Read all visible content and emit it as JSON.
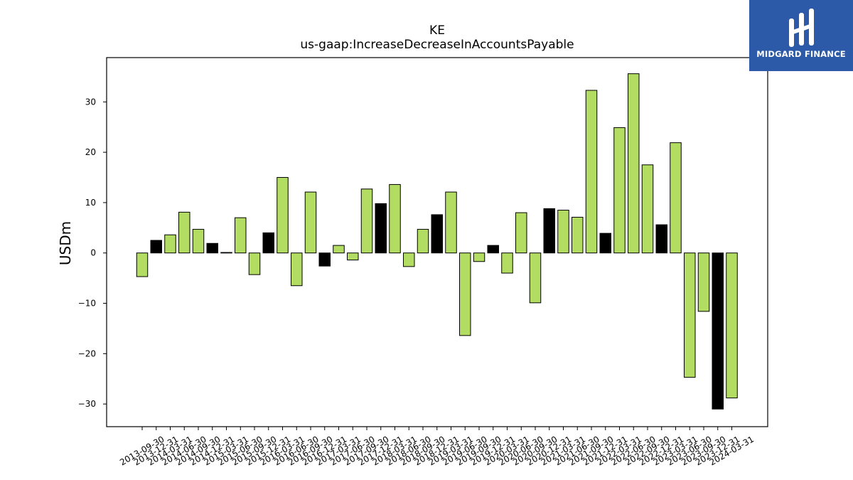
{
  "chart_data": {
    "type": "bar",
    "title": "KE",
    "subtitle": "us-gaap:IncreaseDecreaseInAccountsPayable",
    "ylabel": "USDm",
    "xlabel": "",
    "ylim": [
      -34.5,
      38.8
    ],
    "yticks": [
      -30,
      -20,
      -10,
      0,
      10,
      20,
      30
    ],
    "ytick_labels": [
      "−30",
      "−20",
      "−10",
      "0",
      "10",
      "20",
      "30"
    ],
    "categories": [
      "2013-09-30",
      "2013-12-31",
      "2014-03-31",
      "2014-06-30",
      "2014-09-30",
      "2014-12-31",
      "2015-03-31",
      "2015-06-30",
      "2015-09-30",
      "2015-12-31",
      "2016-03-31",
      "2016-06-30",
      "2016-09-30",
      "2016-12-31",
      "2017-03-31",
      "2017-06-30",
      "2017-09-30",
      "2017-12-31",
      "2018-03-31",
      "2018-06-30",
      "2018-09-30",
      "2018-12-31",
      "2019-03-31",
      "2019-06-30",
      "2019-09-30",
      "2019-12-31",
      "2020-03-31",
      "2020-06-30",
      "2020-09-30",
      "2020-12-31",
      "2021-03-31",
      "2021-06-30",
      "2021-09-30",
      "2021-12-31",
      "2022-03-31",
      "2022-06-30",
      "2022-09-30",
      "2022-12-31",
      "2023-03-31",
      "2023-06-30",
      "2023-09-30",
      "2023-12-31",
      "2024-03-31"
    ],
    "values": [
      -4.7,
      2.5,
      3.6,
      8.1,
      4.7,
      1.9,
      0.1,
      7.0,
      -4.3,
      4.0,
      15.0,
      -6.5,
      12.1,
      -2.6,
      1.5,
      -1.4,
      12.7,
      9.8,
      13.6,
      -2.7,
      4.7,
      7.6,
      12.1,
      -16.4,
      -1.7,
      1.5,
      -4.0,
      8.0,
      -9.9,
      8.8,
      8.5,
      7.1,
      32.3,
      3.9,
      24.9,
      35.6,
      17.5,
      5.6,
      21.9,
      -24.7,
      -11.6,
      -31.0,
      -28.8
    ],
    "bar_colors": [
      "#b2dc62",
      "#000000",
      "#b2dc62",
      "#b2dc62",
      "#b2dc62",
      "#000000",
      "#000000",
      "#b2dc62",
      "#b2dc62",
      "#000000",
      "#b2dc62",
      "#b2dc62",
      "#b2dc62",
      "#000000",
      "#b2dc62",
      "#b2dc62",
      "#b2dc62",
      "#000000",
      "#b2dc62",
      "#b2dc62",
      "#b2dc62",
      "#000000",
      "#b2dc62",
      "#b2dc62",
      "#b2dc62",
      "#000000",
      "#b2dc62",
      "#b2dc62",
      "#b2dc62",
      "#000000",
      "#b2dc62",
      "#b2dc62",
      "#b2dc62",
      "#000000",
      "#b2dc62",
      "#b2dc62",
      "#b2dc62",
      "#000000",
      "#b2dc62",
      "#b2dc62",
      "#b2dc62",
      "#000000",
      "#b2dc62"
    ],
    "colors": {
      "accent_bar": "#b2dc62",
      "dark_bar": "#000000",
      "bar_edge": "#000000"
    },
    "grid": false,
    "legend": "none"
  },
  "logo": {
    "text": "MIDGARD FINANCE",
    "background": "#2d5aa8",
    "icon": "midgard-logo-icon"
  }
}
